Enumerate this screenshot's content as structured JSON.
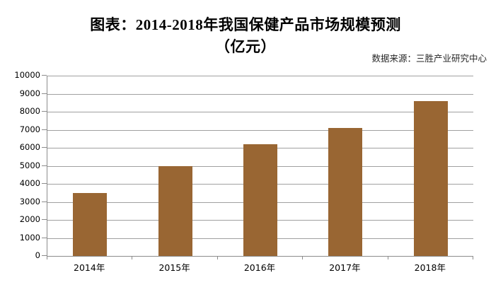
{
  "header": {
    "title_line1": "图表：2014-2018年我国保健产品市场规模预测",
    "title_line2": "（亿元）",
    "source": "数据来源：三胜产业研究中心"
  },
  "chart_data": {
    "type": "bar",
    "title": "图表：2014-2018年我国保健产品市场规模预测（亿元）",
    "source": "数据来源：三胜产业研究中心",
    "categories": [
      "2014年",
      "2015年",
      "2016年",
      "2017年",
      "2018年"
    ],
    "values": [
      3500,
      5000,
      6200,
      7100,
      8600
    ],
    "xlabel": "",
    "ylabel": "",
    "ylim": [
      0,
      10000
    ],
    "ytick_interval": 1000,
    "yticks": [
      0,
      1000,
      2000,
      3000,
      4000,
      5000,
      6000,
      7000,
      8000,
      9000,
      10000
    ],
    "grid": true,
    "legend": false,
    "bar_color": "#996633",
    "gridline_color": "#a0a0a0",
    "axis_color": "#8c8c8c",
    "title_color": "#000000",
    "source_color": "#262626"
  }
}
